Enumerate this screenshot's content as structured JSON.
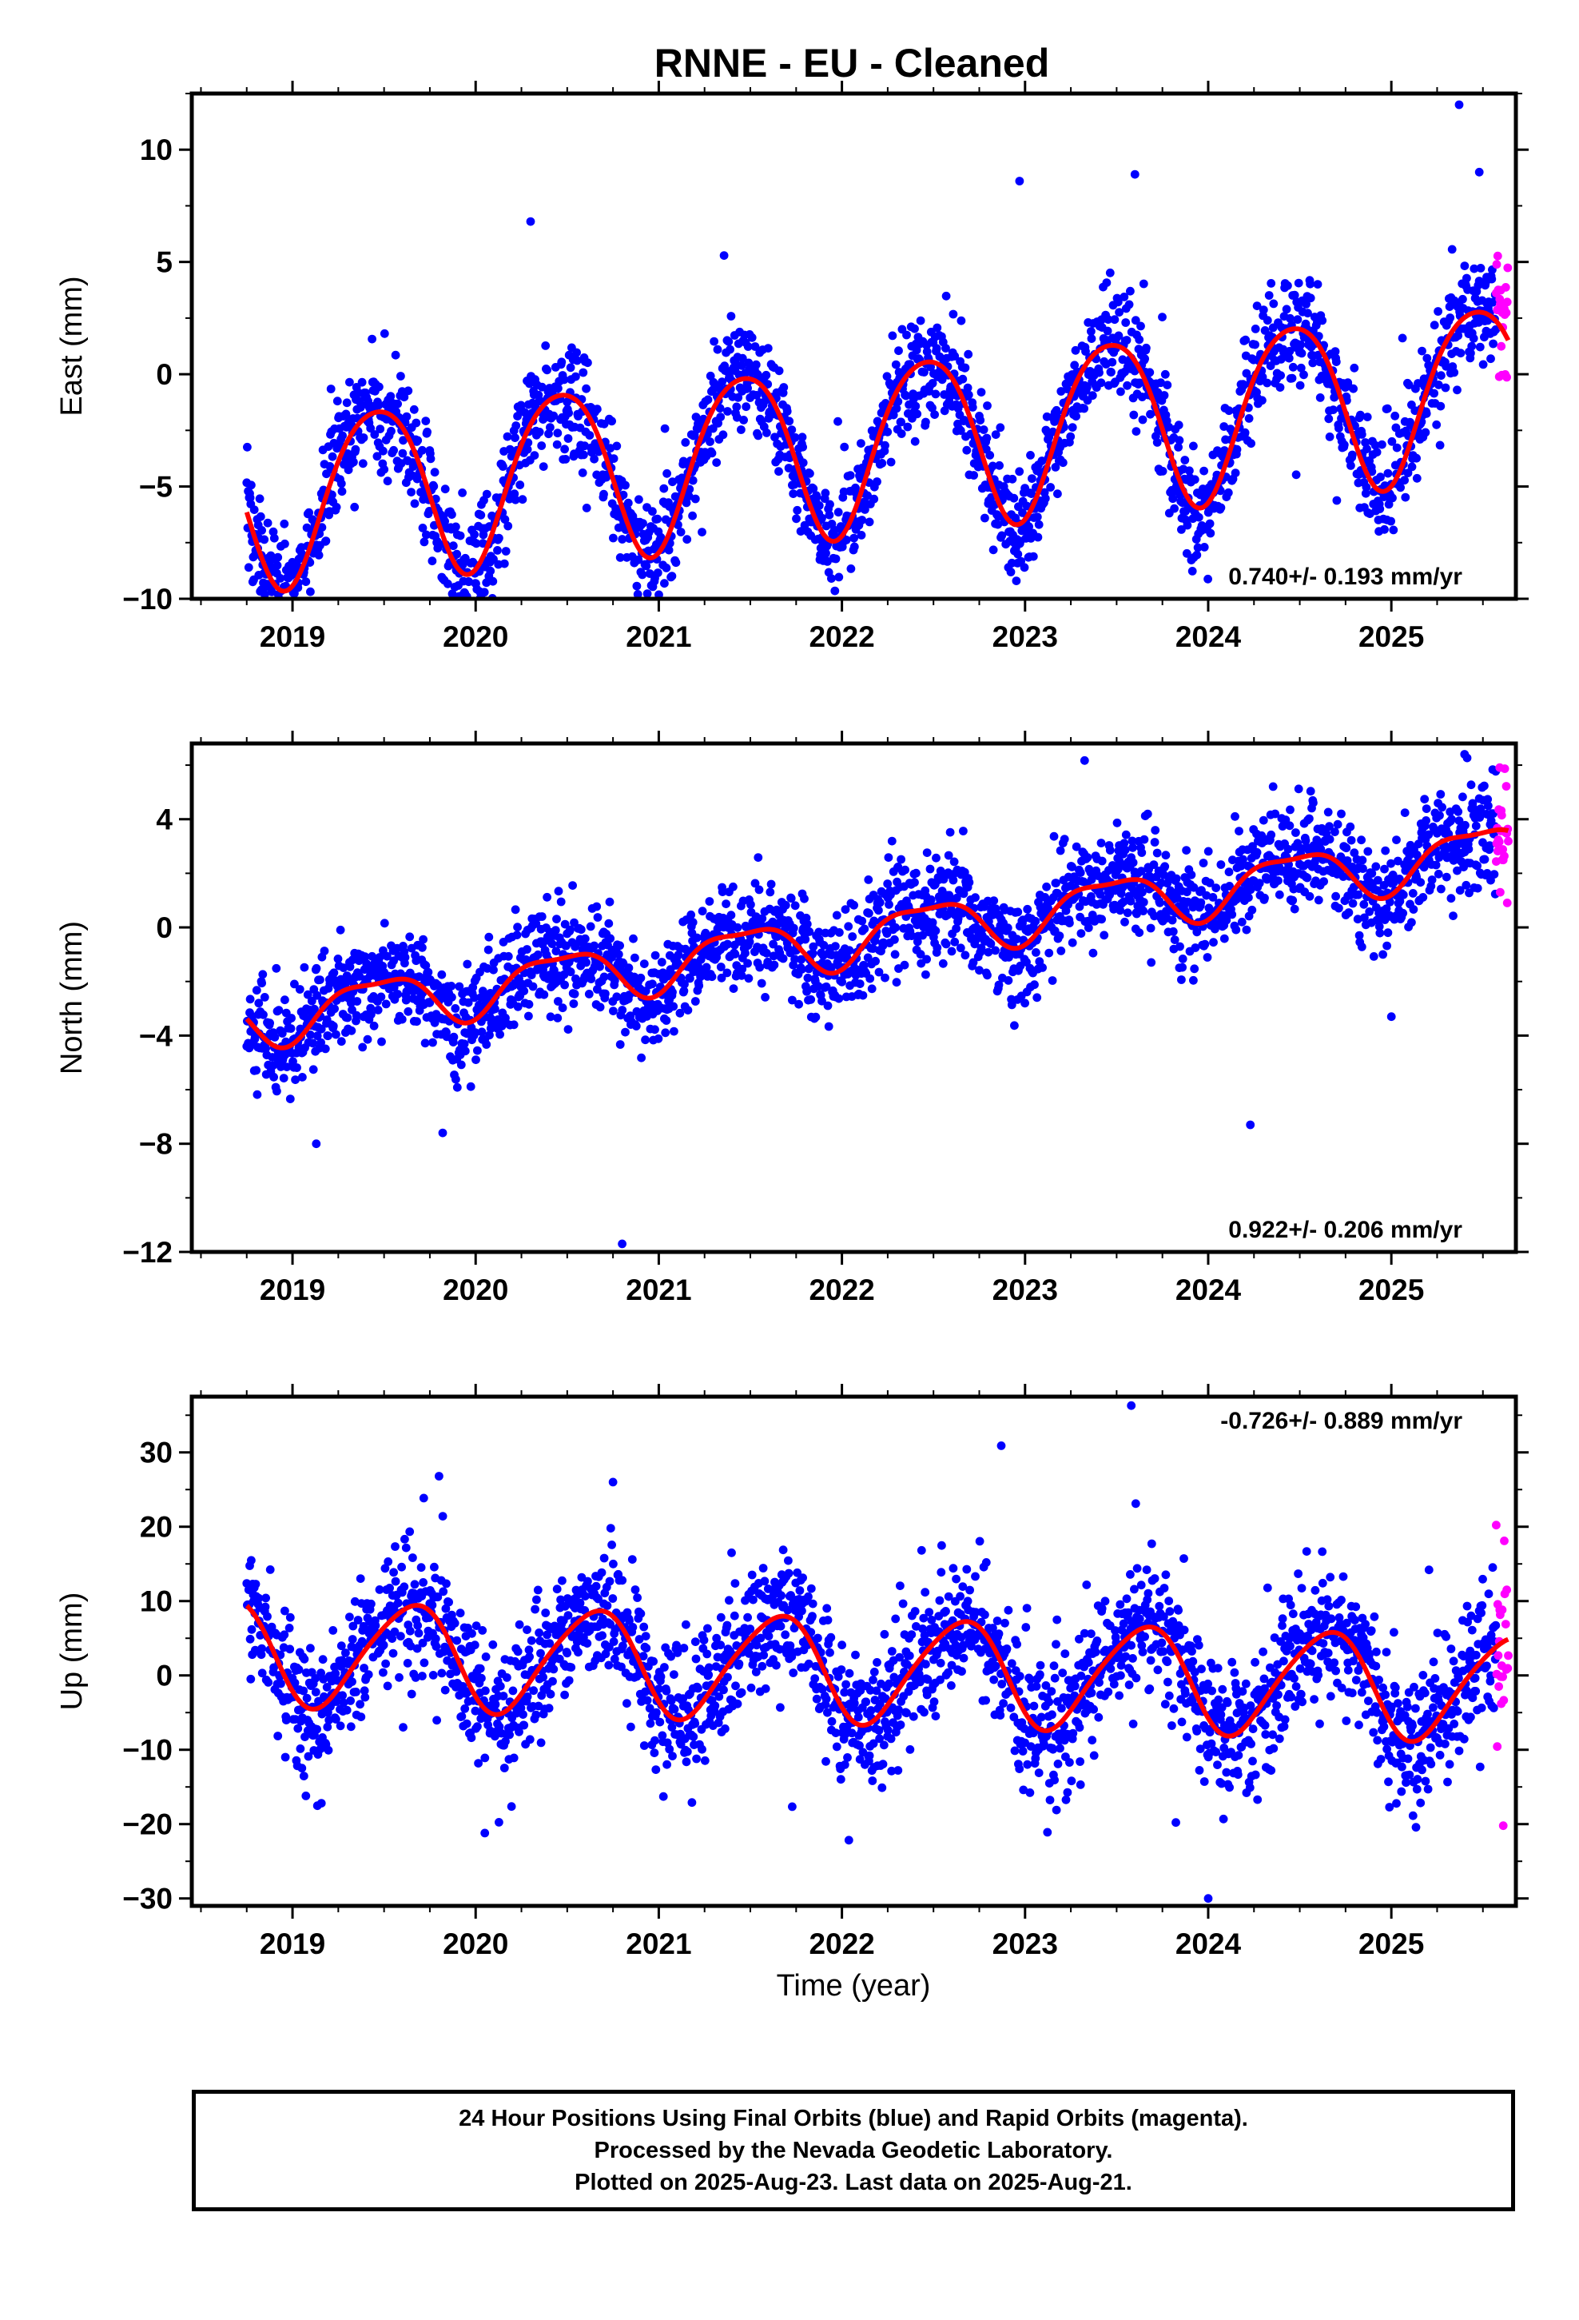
{
  "title": "RNNE  - EU - Cleaned",
  "colors": {
    "final_orbits": "#0000ff",
    "rapid_orbits": "#ff00ff",
    "model": "#ff0000",
    "frame": "#000000"
  },
  "x_ticks": [
    "2019",
    "2020",
    "2021",
    "2022",
    "2023",
    "2024",
    "2025"
  ],
  "xlabel": "Time (year)",
  "caption": [
    "24 Hour Positions Using Final Orbits (blue) and Rapid Orbits (magenta).",
    "Processed by the Nevada Geodetic Laboratory.",
    "Plotted on 2025-Aug-23. Last data on 2025-Aug-21."
  ],
  "chart_data": [
    {
      "type": "scatter",
      "component": "east",
      "ylabel": "East (mm)",
      "rate": "0.740+/- 0.193 mm/yr",
      "xlim": [
        2018.45,
        2025.68
      ],
      "ylim": [
        -10,
        12.5
      ],
      "yticks": [
        -10,
        -5,
        0,
        5,
        10
      ],
      "data_start": 2018.75,
      "data_end": 2025.64,
      "rapid_start": 2025.57,
      "model": {
        "offset": -3.16,
        "trend": 0.74,
        "ref_year": 2022.0,
        "annual_amp": 3.8,
        "annual_peak": 2019.46,
        "semiannual_amp": 0.45,
        "semiannual_peak": 2019.2
      },
      "noise_mm": 1.2,
      "outliers": [
        {
          "x": 2025.37,
          "y": 12.0
        },
        {
          "x": 2022.97,
          "y": 8.6
        },
        {
          "x": 2023.6,
          "y": 8.9
        },
        {
          "x": 2020.3,
          "y": 6.8
        },
        {
          "x": 2018.83,
          "y": -9.6
        },
        {
          "x": 2025.48,
          "y": 9.0
        }
      ]
    },
    {
      "type": "scatter",
      "component": "north",
      "ylabel": "North (mm)",
      "rate": "0.922+/- 0.206 mm/yr",
      "xlim": [
        2018.45,
        2025.68
      ],
      "ylim": [
        -12,
        6.8
      ],
      "yticks": [
        -12,
        -8,
        -4,
        0,
        4
      ],
      "data_start": 2018.75,
      "data_end": 2025.64,
      "rapid_start": 2025.57,
      "model": {
        "offset": -0.4,
        "trend": 0.92,
        "ref_year": 2022.0,
        "annual_amp": 0.95,
        "annual_peak": 2019.46,
        "semiannual_amp": 0.3,
        "semiannual_peak": 2019.2
      },
      "noise_mm": 0.95,
      "outliers": [
        {
          "x": 2020.8,
          "y": -11.7
        },
        {
          "x": 2024.23,
          "y": -7.3
        },
        {
          "x": 2019.82,
          "y": -7.6
        },
        {
          "x": 2019.13,
          "y": -8.0
        },
        {
          "x": 2025.0,
          "y": -3.3
        },
        {
          "x": 2025.4,
          "y": 6.4
        }
      ]
    },
    {
      "type": "scatter",
      "component": "up",
      "ylabel": "Up (mm)",
      "rate": "-0.726+/- 0.889 mm/yr",
      "xlim": [
        2018.45,
        2025.68
      ],
      "ylim": [
        -31,
        37.5
      ],
      "yticks": [
        -30,
        -20,
        -10,
        0,
        10,
        20,
        30
      ],
      "data_start": 2018.75,
      "data_end": 2025.64,
      "rapid_start": 2025.57,
      "model": {
        "offset": 0.9,
        "trend": -0.726,
        "ref_year": 2022.0,
        "annual_amp": 7.0,
        "annual_peak": 2019.64,
        "semiannual_amp": 0.9,
        "semiannual_peak": 2019.3
      },
      "noise_mm": 4.5,
      "outliers": [
        {
          "x": 2023.58,
          "y": 36.3
        },
        {
          "x": 2022.87,
          "y": 30.9
        },
        {
          "x": 2024.0,
          "y": -30.0
        },
        {
          "x": 2020.05,
          "y": -21.2
        },
        {
          "x": 2019.8,
          "y": 26.8
        },
        {
          "x": 2020.75,
          "y": 26.0
        }
      ]
    }
  ]
}
